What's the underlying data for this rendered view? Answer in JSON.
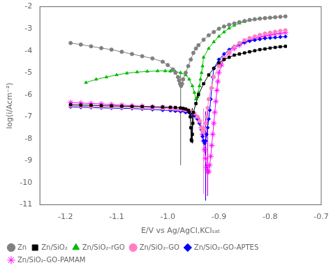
{
  "chart_data": {
    "type": "line",
    "x_label": "E/V vs Ag/AgCl,KClₛₐₜ",
    "y_label": "log(i/Acm⁻²)",
    "xlim": [
      -1.25,
      -0.7
    ],
    "ylim": [
      -11,
      -2
    ],
    "xticks": [
      -1.2,
      -1.1,
      {
        "value": -1.0,
        "label": "-1.0"
      },
      -0.9,
      -0.8,
      -0.7
    ],
    "yticks": [
      -11,
      -10,
      -9,
      -8,
      -7,
      -6,
      -5,
      -4,
      -3,
      -2
    ],
    "grid": false,
    "legend": "lower left",
    "series": [
      {
        "name": "Zn",
        "color": "#808080",
        "marker": "circle",
        "x": [
          -1.19,
          -1.17,
          -1.15,
          -1.13,
          -1.11,
          -1.09,
          -1.07,
          -1.05,
          -1.03,
          -1.01,
          -1.0,
          -0.99,
          -0.985,
          -0.98,
          -0.978,
          -0.976,
          -0.974,
          -0.972,
          -0.97,
          -0.965,
          -0.96,
          -0.955,
          -0.95,
          -0.945,
          -0.94,
          -0.93,
          -0.92,
          -0.91,
          -0.9,
          -0.89,
          -0.88,
          -0.87,
          -0.86,
          -0.85,
          -0.84,
          -0.83,
          -0.82,
          -0.81,
          -0.8,
          -0.79,
          -0.78,
          -0.77
        ],
        "values": [
          -3.65,
          -3.72,
          -3.8,
          -3.88,
          -3.95,
          -4.05,
          -4.15,
          -4.25,
          -4.35,
          -4.5,
          -4.65,
          -4.85,
          -5.0,
          -5.2,
          -5.35,
          -5.5,
          -5.6,
          -5.5,
          -5.3,
          -5.0,
          -4.7,
          -4.4,
          -4.1,
          -3.9,
          -3.75,
          -3.5,
          -3.3,
          -3.15,
          -3.0,
          -2.9,
          -2.82,
          -2.76,
          -2.7,
          -2.65,
          -2.6,
          -2.57,
          -2.54,
          -2.52,
          -2.5,
          -2.48,
          -2.46,
          -2.44
        ]
      },
      {
        "name": "Zn/SiO₂",
        "color": "#000000",
        "marker": "square",
        "x": [
          -1.19,
          -1.17,
          -1.15,
          -1.13,
          -1.11,
          -1.09,
          -1.07,
          -1.05,
          -1.03,
          -1.01,
          -0.995,
          -0.985,
          -0.975,
          -0.97,
          -0.965,
          -0.96,
          -0.958,
          -0.956,
          -0.955,
          -0.954,
          -0.953,
          -0.952,
          -0.951,
          -0.95,
          -0.945,
          -0.94,
          -0.93,
          -0.92,
          -0.91,
          -0.9,
          -0.89,
          -0.88,
          -0.87,
          -0.86,
          -0.85,
          -0.84,
          -0.83,
          -0.82,
          -0.81,
          -0.8,
          -0.79,
          -0.78,
          -0.77
        ],
        "values": [
          -6.45,
          -6.47,
          -6.48,
          -6.5,
          -6.51,
          -6.52,
          -6.53,
          -6.54,
          -6.55,
          -6.56,
          -6.57,
          -6.58,
          -6.6,
          -6.62,
          -6.65,
          -6.7,
          -6.8,
          -7.0,
          -7.5,
          -8.05,
          -8.1,
          -7.8,
          -7.3,
          -6.8,
          -6.4,
          -6.0,
          -5.5,
          -5.1,
          -4.8,
          -4.55,
          -4.4,
          -4.3,
          -4.2,
          -4.15,
          -4.1,
          -4.05,
          -4.0,
          -3.95,
          -3.92,
          -3.88,
          -3.85,
          -3.82,
          -3.8
        ]
      },
      {
        "name": "Zn/SiO₂-rGO",
        "color": "#00BB00",
        "marker": "triangle",
        "x": [
          -1.16,
          -1.14,
          -1.12,
          -1.1,
          -1.08,
          -1.06,
          -1.04,
          -1.02,
          -1.005,
          -0.995,
          -0.985,
          -0.975,
          -0.965,
          -0.958,
          -0.952,
          -0.948,
          -0.945,
          -0.942,
          -0.94,
          -0.938,
          -0.936,
          -0.934,
          -0.932,
          -0.93,
          -0.92,
          -0.91,
          -0.9,
          -0.89,
          -0.88,
          -0.87,
          -0.86,
          -0.85,
          -0.84,
          -0.83,
          -0.82,
          -0.81,
          -0.8,
          -0.79
        ],
        "values": [
          -5.45,
          -5.3,
          -5.2,
          -5.1,
          -5.02,
          -4.97,
          -4.94,
          -4.92,
          -4.92,
          -4.93,
          -4.95,
          -5.0,
          -5.1,
          -5.3,
          -5.6,
          -5.9,
          -6.2,
          -6.1,
          -5.9,
          -5.6,
          -5.3,
          -5.0,
          -4.7,
          -4.3,
          -3.9,
          -3.6,
          -3.35,
          -3.15,
          -2.98,
          -2.85,
          -2.75,
          -2.68,
          -2.62,
          -2.58,
          -2.55,
          -2.52,
          -2.5,
          -2.48
        ]
      },
      {
        "name": "Zn/SiO₂-GO",
        "color": "#FF80C0",
        "marker": "circle",
        "x": [
          -1.19,
          -1.17,
          -1.15,
          -1.13,
          -1.11,
          -1.09,
          -1.07,
          -1.05,
          -1.03,
          -1.01,
          -0.995,
          -0.985,
          -0.975,
          -0.965,
          -0.955,
          -0.948,
          -0.942,
          -0.938,
          -0.934,
          -0.932,
          -0.93,
          -0.928,
          -0.926,
          -0.924,
          -0.922,
          -0.92,
          -0.915,
          -0.91,
          -0.9,
          -0.89,
          -0.88,
          -0.87,
          -0.86,
          -0.85,
          -0.84,
          -0.83,
          -0.82,
          -0.81,
          -0.8,
          -0.79,
          -0.78,
          -0.77
        ],
        "values": [
          -6.5,
          -6.52,
          -6.54,
          -6.56,
          -6.57,
          -6.58,
          -6.59,
          -6.6,
          -6.61,
          -6.62,
          -6.63,
          -6.65,
          -6.67,
          -6.7,
          -6.75,
          -6.85,
          -7.0,
          -7.2,
          -7.5,
          -7.65,
          -7.7,
          -7.55,
          -7.3,
          -7.0,
          -6.6,
          -6.2,
          -5.7,
          -5.2,
          -4.7,
          -4.35,
          -4.05,
          -3.82,
          -3.65,
          -3.52,
          -3.42,
          -3.35,
          -3.28,
          -3.22,
          -3.18,
          -3.14,
          -3.1,
          -3.07
        ]
      },
      {
        "name": "Zn/SiO₂-GO-APTES",
        "color": "#0000FF",
        "marker": "diamond",
        "x": [
          -1.19,
          -1.17,
          -1.15,
          -1.13,
          -1.11,
          -1.09,
          -1.07,
          -1.05,
          -1.03,
          -1.01,
          -0.995,
          -0.985,
          -0.975,
          -0.965,
          -0.955,
          -0.948,
          -0.942,
          -0.938,
          -0.934,
          -0.932,
          -0.93,
          -0.928,
          -0.926,
          -0.924,
          -0.922,
          -0.92,
          -0.918,
          -0.916,
          -0.914,
          -0.912,
          -0.91,
          -0.9,
          -0.89,
          -0.88,
          -0.87,
          -0.86,
          -0.85,
          -0.84,
          -0.83,
          -0.82,
          -0.81,
          -0.8,
          -0.79,
          -0.78,
          -0.77
        ],
        "values": [
          -6.55,
          -6.57,
          -6.58,
          -6.6,
          -6.61,
          -6.62,
          -6.63,
          -6.65,
          -6.67,
          -6.7,
          -6.72,
          -6.74,
          -6.76,
          -6.8,
          -6.85,
          -6.95,
          -7.1,
          -7.3,
          -7.6,
          -7.9,
          -8.1,
          -8.2,
          -8.1,
          -7.8,
          -7.5,
          -7.1,
          -6.7,
          -6.2,
          -5.7,
          -5.2,
          -4.8,
          -4.4,
          -4.15,
          -3.95,
          -3.8,
          -3.7,
          -3.62,
          -3.56,
          -3.52,
          -3.48,
          -3.44,
          -3.42,
          -3.4,
          -3.38,
          -3.36
        ]
      },
      {
        "name": "Zn/SiO₂-GO-PAMAM",
        "color": "#FF00FF",
        "marker": "star",
        "x": [
          -1.19,
          -1.17,
          -1.15,
          -1.13,
          -1.11,
          -1.09,
          -1.07,
          -1.05,
          -1.03,
          -1.01,
          -0.995,
          -0.985,
          -0.975,
          -0.965,
          -0.955,
          -0.948,
          -0.942,
          -0.938,
          -0.934,
          -0.932,
          -0.93,
          -0.928,
          -0.926,
          -0.924,
          -0.922,
          -0.92,
          -0.918,
          -0.916,
          -0.914,
          -0.912,
          -0.91,
          -0.908,
          -0.906,
          -0.904,
          -0.902,
          -0.9,
          -0.895,
          -0.89,
          -0.88,
          -0.87,
          -0.86,
          -0.85,
          -0.84,
          -0.83,
          -0.82,
          -0.81,
          -0.8,
          -0.79,
          -0.78,
          -0.77
        ],
        "values": [
          -6.35,
          -6.38,
          -6.4,
          -6.42,
          -6.45,
          -6.47,
          -6.5,
          -6.52,
          -6.55,
          -6.58,
          -6.62,
          -6.65,
          -6.7,
          -6.75,
          -6.8,
          -6.9,
          -7.05,
          -7.2,
          -7.5,
          -7.8,
          -8.1,
          -8.5,
          -8.9,
          -9.3,
          -9.5,
          -9.5,
          -9.2,
          -8.8,
          -8.3,
          -7.8,
          -7.3,
          -6.8,
          -6.3,
          -5.8,
          -5.4,
          -5.0,
          -4.65,
          -4.35,
          -4.1,
          -3.9,
          -3.75,
          -3.62,
          -3.52,
          -3.44,
          -3.38,
          -3.33,
          -3.28,
          -3.24,
          -3.21,
          -3.18
        ]
      }
    ],
    "vertical_lines": [
      {
        "x": -0.975,
        "y_top": -5.0,
        "y_bottom": -9.2,
        "color": "#808080"
      },
      {
        "x": -0.952,
        "y_top": -6.62,
        "y_bottom": -8.2,
        "color": "#000000"
      },
      {
        "x": -0.93,
        "y_top": -6.63,
        "y_bottom": -10.5,
        "color": "#FF80C0"
      },
      {
        "x": -0.926,
        "y_top": -6.76,
        "y_bottom": -10.8,
        "color": "#0000FF"
      },
      {
        "x": -0.922,
        "y_top": -6.7,
        "y_bottom": -10.6,
        "color": "#FF00FF"
      }
    ]
  }
}
